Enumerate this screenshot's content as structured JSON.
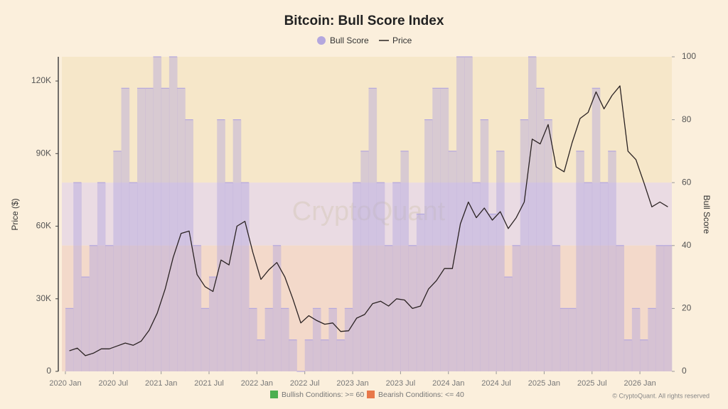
{
  "chart_data": {
    "type": "line",
    "title": "Bitcoin: Bull Score Index",
    "watermark": "CryptoQuant",
    "copyright": "© CryptoQuant. All rights reserved",
    "y_label": "Price ($)",
    "y2_label": "Bull Score",
    "x": [
      "2020-01",
      "2020-02",
      "2020-03",
      "2020-04",
      "2020-05",
      "2020-06",
      "2020-07",
      "2020-08",
      "2020-09",
      "2020-10",
      "2020-11",
      "2020-12",
      "2021-01",
      "2021-02",
      "2021-03",
      "2021-04",
      "2021-05",
      "2021-06",
      "2021-07",
      "2021-08",
      "2021-09",
      "2021-10",
      "2021-11",
      "2021-12",
      "2022-01",
      "2022-02",
      "2022-03",
      "2022-04",
      "2022-05",
      "2022-06",
      "2022-07",
      "2022-08",
      "2022-09",
      "2022-10",
      "2022-11",
      "2022-12",
      "2023-01",
      "2023-02",
      "2023-03",
      "2023-04",
      "2023-05",
      "2023-06",
      "2023-07",
      "2023-08",
      "2023-09",
      "2023-10",
      "2023-11",
      "2023-12",
      "2024-01",
      "2024-02",
      "2024-03",
      "2024-04",
      "2024-05",
      "2024-06",
      "2024-07",
      "2024-08",
      "2024-09",
      "2024-10",
      "2024-11",
      "2024-12",
      "2025-01",
      "2025-02",
      "2025-03",
      "2025-04",
      "2025-05",
      "2025-06",
      "2025-07",
      "2025-08",
      "2025-09",
      "2025-10",
      "2025-11",
      "2025-12",
      "2026-01",
      "2026-02",
      "2026-03",
      "2026-04"
    ],
    "series": [
      {
        "name": "Bull Score",
        "color": "#b4a7de",
        "axis": "y2",
        "values": [
          20,
          60,
          30,
          40,
          60,
          40,
          70,
          90,
          60,
          90,
          90,
          100,
          90,
          100,
          90,
          80,
          40,
          20,
          30,
          80,
          60,
          80,
          60,
          20,
          10,
          20,
          40,
          20,
          10,
          0,
          10,
          20,
          10,
          20,
          10,
          20,
          60,
          70,
          90,
          60,
          40,
          60,
          70,
          40,
          50,
          80,
          90,
          90,
          70,
          100,
          100,
          60,
          80,
          50,
          70,
          30,
          40,
          80,
          100,
          90,
          80,
          40,
          20,
          20,
          70,
          60,
          90,
          60,
          70,
          40,
          10,
          20,
          10,
          20,
          40,
          40
        ]
      },
      {
        "name": "Price",
        "color": "#2a2222",
        "values": [
          8500,
          9600,
          6500,
          7500,
          9300,
          9300,
          10500,
          11700,
          10800,
          12500,
          17000,
          24000,
          34000,
          47000,
          57000,
          58000,
          40000,
          35000,
          33000,
          46000,
          44000,
          60000,
          62000,
          49000,
          38000,
          42000,
          45000,
          39000,
          30000,
          20000,
          23000,
          21000,
          19500,
          20000,
          16500,
          16800,
          22000,
          23500,
          28000,
          29000,
          27000,
          30000,
          29500,
          26000,
          27000,
          34000,
          37500,
          42500,
          42500,
          61000,
          70000,
          63500,
          67500,
          62500,
          66000,
          59000,
          63500,
          70000,
          96000,
          94000,
          102000,
          84500,
          82500,
          94500,
          104500,
          107000,
          115500,
          108500,
          114000,
          118000,
          91000,
          87500,
          78000,
          68000,
          70000,
          68000
        ]
      }
    ],
    "xlim": [
      "2020-01",
      "2026-05"
    ],
    "xticks": [
      {
        "value": "2020-01",
        "label": "2020 Jan"
      },
      {
        "value": "2020-07",
        "label": "2020 Jul"
      },
      {
        "value": "2021-01",
        "label": "2021 Jan"
      },
      {
        "value": "2021-07",
        "label": "2021 Jul"
      },
      {
        "value": "2022-01",
        "label": "2022 Jan"
      },
      {
        "value": "2022-07",
        "label": "2022 Jul"
      },
      {
        "value": "2023-01",
        "label": "2023 Jan"
      },
      {
        "value": "2023-07",
        "label": "2023 Jul"
      },
      {
        "value": "2024-01",
        "label": "2024 Jan"
      },
      {
        "value": "2024-07",
        "label": "2024 Jul"
      },
      {
        "value": "2025-01",
        "label": "2025 Jan"
      },
      {
        "value": "2025-07",
        "label": "2025 Jul"
      },
      {
        "value": "2026-01",
        "label": "2026 Jan"
      }
    ],
    "ylim": [
      0,
      130000
    ],
    "yticks": [
      0,
      {
        "value": 30000,
        "label": "30K"
      },
      {
        "value": 60000,
        "label": "60K"
      },
      {
        "value": 90000,
        "label": "90K"
      },
      {
        "value": 120000,
        "label": "120K"
      }
    ],
    "y2lim": [
      0,
      100
    ],
    "y2ticks": [
      0,
      20,
      40,
      60,
      80,
      100
    ],
    "bands": [
      {
        "label": "Bullish Conditions: >= 60",
        "from": 60,
        "color": "#f6e7c9",
        "swatch": "#4caf50"
      },
      {
        "label": "Bearish Conditions: <= 40",
        "to": 40,
        "color": "#f3d9ca",
        "swatch": "#e8784a"
      }
    ],
    "neutral_band_color": "#eadbe3"
  }
}
